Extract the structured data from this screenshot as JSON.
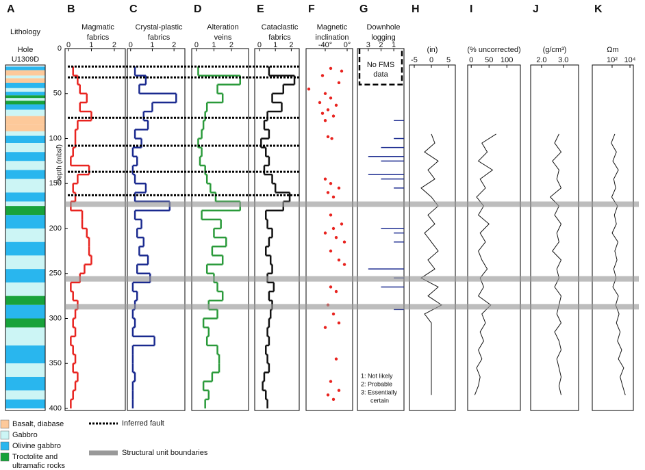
{
  "chart_data": [
    {
      "type": "lithology",
      "label": "A",
      "title": [
        "Lithology"
      ],
      "hole": [
        "Hole",
        "U1309D"
      ],
      "ylim": [
        0,
        400
      ],
      "depths": [
        20,
        24,
        30,
        33,
        38,
        44,
        48,
        52,
        55,
        58,
        62,
        68,
        75,
        85,
        92,
        97,
        105,
        115,
        125,
        135,
        145,
        160,
        170,
        175,
        185,
        200,
        215,
        230,
        245,
        260,
        275,
        285,
        300,
        310,
        330,
        350,
        365,
        380,
        390,
        400
      ],
      "colors": [
        "#29b6ee",
        "#fdc99a",
        "#ccf5f5",
        "#fdc99a",
        "#29b6ee",
        "#ccf5f5",
        "#29b6ee",
        "#18a23a",
        "#ccf5f5",
        "#18a23a",
        "#29b6ee",
        "#ccf5f5",
        "#fdc99a",
        "#fdc99a",
        "#ccf5f5",
        "#29b6ee",
        "#ccf5f5",
        "#29b6ee",
        "#ccf5f5",
        "#29b6ee",
        "#ccf5f5",
        "#29b6ee",
        "#ccf5f5",
        "#18a23a",
        "#29b6ee",
        "#ccf5f5",
        "#29b6ee",
        "#ccf5f5",
        "#29b6ee",
        "#ccf5f5",
        "#18a23a",
        "#29b6ee",
        "#18a23a",
        "#ccf5f5",
        "#29b6ee",
        "#ccf5f5",
        "#29b6ee",
        "#ccf5f5",
        "#29b6ee"
      ],
      "legend": [
        {
          "name": [
            "Basalt, diabase"
          ],
          "color": "#fdc99a"
        },
        {
          "name": [
            "Gabbro"
          ],
          "color": "#ccf5f5"
        },
        {
          "name": [
            "Olivine gabbro"
          ],
          "color": "#29b6ee"
        },
        {
          "name": [
            "Troctolite and",
            "ultramafic rocks"
          ],
          "color": "#18a23a"
        }
      ]
    },
    {
      "type": "step",
      "label": "B",
      "title": [
        "Magmatic",
        "fabrics"
      ],
      "color": "#e8231f",
      "xlim": [
        -0.15,
        2.48
      ],
      "xticks": [
        0,
        1,
        2
      ],
      "ylim": [
        0,
        400
      ],
      "yticks": [
        0,
        50,
        100,
        150,
        200,
        250,
        300,
        350,
        400
      ],
      "ylabel": "Depth (mbsf)",
      "faults": [
        20,
        32,
        77,
        108,
        137,
        163
      ],
      "boundaries": [
        173,
        256,
        287
      ],
      "fault_label": "Inferred fault",
      "boundary_label": "Structural unit boundaries",
      "depths": [
        20,
        30,
        40,
        50,
        60,
        70,
        80,
        90,
        100,
        110,
        120,
        130,
        140,
        150,
        160,
        170,
        180,
        190,
        200,
        210,
        220,
        230,
        240,
        250,
        260,
        270,
        280,
        290,
        300,
        310,
        320,
        330,
        340,
        350,
        360,
        370,
        380,
        390,
        400
      ],
      "values": [
        0.2,
        0.4,
        0.5,
        0.8,
        0.5,
        1.0,
        0.4,
        0.3,
        0.3,
        0.2,
        0.1,
        0.9,
        0.4,
        0.2,
        0.3,
        0.1,
        0.6,
        0.6,
        0.8,
        0.9,
        0.9,
        1.0,
        0.7,
        0.5,
        0.1,
        0.2,
        0.4,
        0.3,
        0.2,
        0.3,
        0.1,
        0.2,
        0.3,
        0.2,
        0.4,
        0.3,
        0.2,
        0.1
      ]
    },
    {
      "type": "step",
      "label": "C",
      "title": [
        "Crystal-plastic",
        "fabrics"
      ],
      "color": "#1a2a8f",
      "xlim": [
        -0.15,
        2.5
      ],
      "xticks": [
        0,
        1,
        2
      ],
      "ylim": [
        0,
        400
      ],
      "depths": [
        20,
        30,
        40,
        50,
        60,
        70,
        80,
        90,
        100,
        110,
        120,
        130,
        140,
        150,
        160,
        170,
        180,
        190,
        200,
        210,
        220,
        230,
        240,
        250,
        260,
        270,
        280,
        290,
        300,
        310,
        320,
        330,
        340,
        350,
        360,
        370,
        380,
        390,
        400
      ],
      "values": [
        0.2,
        0.7,
        0.4,
        2.1,
        1.0,
        0.6,
        0.8,
        0.2,
        0.5,
        0.1,
        0.3,
        0.1,
        0.2,
        0.7,
        0.2,
        1.8,
        0.2,
        0.5,
        0.3,
        0.6,
        0.4,
        0.8,
        0.3,
        0.9,
        0.1,
        0.3,
        0.2,
        0.1,
        0.2,
        0.1,
        1.1,
        0.1,
        0.1,
        0.1,
        0.2,
        0.1,
        0.1,
        0.1
      ]
    },
    {
      "type": "step",
      "label": "D",
      "title": [
        "Alteration",
        "veins"
      ],
      "color": "#2a9a3a",
      "xlim": [
        -0.27,
        2.98
      ],
      "xticks": [
        0,
        1,
        2
      ],
      "ylim": [
        0,
        400
      ],
      "depths": [
        20,
        30,
        40,
        50,
        60,
        70,
        80,
        90,
        100,
        110,
        120,
        130,
        140,
        150,
        160,
        170,
        180,
        190,
        200,
        210,
        220,
        230,
        240,
        250,
        260,
        270,
        280,
        290,
        300,
        310,
        320,
        330,
        340,
        350,
        360,
        370,
        380,
        390,
        400
      ],
      "values": [
        0.1,
        2.5,
        1.2,
        1.5,
        0.6,
        0.5,
        0.4,
        0.3,
        0.1,
        0.3,
        0.2,
        0.5,
        0.6,
        0.8,
        1.1,
        2.5,
        0.3,
        1.4,
        1.0,
        1.7,
        0.9,
        1.5,
        0.6,
        1.0,
        1.2,
        1.5,
        0.7,
        1.2,
        0.4,
        0.7,
        0.6,
        1.2,
        1.3,
        1.3,
        0.9,
        0.4,
        0.7,
        0.5
      ]
    },
    {
      "type": "step",
      "label": "E",
      "title": [
        "Cataclastic",
        "fabrics"
      ],
      "color": "#111111",
      "xlim": [
        -0.3,
        2.5
      ],
      "xticks": [
        0,
        1,
        2
      ],
      "ylim": [
        0,
        400
      ],
      "depths": [
        20,
        30,
        40,
        50,
        60,
        70,
        80,
        90,
        100,
        110,
        120,
        130,
        140,
        150,
        160,
        170,
        180,
        190,
        200,
        210,
        220,
        230,
        240,
        250,
        260,
        270,
        280,
        290,
        300,
        310,
        320,
        330,
        340,
        350,
        360,
        370,
        380,
        390,
        400
      ],
      "values": [
        0.6,
        2.2,
        1.5,
        0.8,
        1.4,
        0.5,
        0.3,
        0.6,
        0.1,
        0.4,
        0.6,
        0.3,
        0.8,
        1.0,
        1.9,
        1.5,
        0.4,
        0.5,
        0.8,
        0.6,
        0.4,
        0.7,
        0.8,
        0.5,
        0.9,
        0.6,
        0.8,
        0.7,
        0.6,
        0.5,
        0.6,
        0.4,
        0.5,
        0.6,
        0.3,
        0.2,
        0.4,
        0.5
      ]
    },
    {
      "type": "scatter",
      "label": "F",
      "title": [
        "Magnetic",
        "inclination"
      ],
      "color": "#e8231f",
      "xlim": [
        -75,
        10
      ],
      "ylim": [
        0,
        400
      ],
      "xticks": [
        {
          "value": -40,
          "label": "-40°"
        },
        {
          "value": 0,
          "label": "0°"
        }
      ],
      "depths": [
        22,
        25,
        30,
        38,
        45,
        50,
        55,
        60,
        63,
        68,
        72,
        75,
        80,
        98,
        100,
        145,
        150,
        155,
        160,
        165,
        185,
        195,
        200,
        205,
        210,
        215,
        225,
        235,
        240,
        265,
        270,
        285,
        295,
        305,
        310,
        345,
        370,
        380,
        385,
        390
      ],
      "values": [
        -30,
        -10,
        -45,
        -15,
        -70,
        -40,
        -30,
        -50,
        -20,
        -35,
        -45,
        -25,
        -40,
        -35,
        -28,
        -40,
        -30,
        -15,
        -35,
        -25,
        -30,
        -10,
        -25,
        -40,
        -20,
        -5,
        -30,
        -15,
        -5,
        -30,
        -20,
        -35,
        -25,
        -15,
        -40,
        -20,
        -30,
        -15,
        -35,
        -25
      ]
    },
    {
      "type": "confidence",
      "label": "G",
      "title": [
        "Downhole",
        "logging"
      ],
      "color": "#1a2a8f",
      "xlim": [
        3.85,
        0.2
      ],
      "xticks": [
        3,
        2,
        1
      ],
      "ylim": [
        0,
        400
      ],
      "no_data_range": [
        0,
        40
      ],
      "no_data": [
        "No FMS",
        "data"
      ],
      "notes": [
        "1: Not likely",
        "2: Probable",
        "3: Essentially",
        "certain"
      ],
      "depths": [
        80,
        100,
        110,
        120,
        125,
        140,
        145,
        155,
        200,
        205,
        215,
        245,
        255,
        265,
        290
      ],
      "values": [
        1,
        1,
        2,
        3,
        2,
        3,
        2,
        1,
        2,
        1,
        1,
        3,
        1,
        2,
        1
      ]
    },
    {
      "type": "log",
      "label": "H",
      "unit": "(in)",
      "color": "#111111",
      "xlim": [
        -6.4,
        7
      ],
      "xticks": [
        -5,
        0,
        5
      ],
      "ylim": [
        0,
        400
      ],
      "depths": [
        95,
        105,
        115,
        125,
        135,
        145,
        155,
        165,
        175,
        185,
        195,
        205,
        215,
        225,
        235,
        245,
        255,
        265,
        275,
        285,
        295,
        305,
        315,
        325,
        335,
        345,
        355,
        365,
        375,
        385
      ],
      "values": [
        0,
        1,
        -2,
        2,
        -1,
        1,
        -3,
        0,
        2,
        -1,
        1,
        -2,
        0,
        2,
        -1,
        1,
        -3,
        2,
        -1,
        3,
        -2,
        0,
        0,
        0,
        0,
        0,
        0,
        0,
        0,
        0
      ]
    },
    {
      "type": "log",
      "label": "I",
      "unit": "(% uncorrected)",
      "color": "#111111",
      "xlim": [
        -10,
        138
      ],
      "xticks": [
        0,
        50,
        100
      ],
      "ylim": [
        0,
        400
      ],
      "depths": [
        95,
        105,
        115,
        125,
        135,
        145,
        155,
        165,
        175,
        185,
        195,
        205,
        215,
        225,
        235,
        245,
        255,
        265,
        275,
        285,
        295,
        305,
        315,
        325,
        335,
        345,
        355,
        365,
        375,
        385
      ],
      "values": [
        70,
        30,
        45,
        20,
        60,
        25,
        40,
        15,
        35,
        20,
        50,
        25,
        40,
        20,
        30,
        45,
        25,
        35,
        20,
        55,
        30,
        40,
        25,
        35,
        20,
        30,
        15,
        25,
        20,
        10
      ]
    },
    {
      "type": "log",
      "label": "J",
      "unit": "(g/cm³)",
      "color": "#111111",
      "xlim": [
        1.5,
        3.7
      ],
      "xticks": [
        {
          "value": 2,
          "label": "2.0"
        },
        {
          "value": 3,
          "label": "3.0"
        }
      ],
      "ylim": [
        0,
        400
      ],
      "depths": [
        95,
        105,
        115,
        125,
        135,
        145,
        155,
        165,
        175,
        185,
        195,
        205,
        215,
        225,
        235,
        245,
        255,
        265,
        275,
        285,
        295,
        305,
        315,
        325,
        335,
        345,
        355,
        365,
        375,
        385
      ],
      "values": [
        2.8,
        2.6,
        2.9,
        2.5,
        2.8,
        2.7,
        2.9,
        2.4,
        2.8,
        2.6,
        2.9,
        2.7,
        2.8,
        2.5,
        2.9,
        2.7,
        2.8,
        2.6,
        2.9,
        2.8,
        2.7,
        2.9,
        2.6,
        2.8,
        2.9,
        2.7,
        2.8,
        2.9,
        2.8,
        2.9
      ]
    },
    {
      "type": "log",
      "label": "K",
      "unit": "Ωm",
      "log": true,
      "color": "#111111",
      "xlim": [
        0.6,
        24000
      ],
      "xticks": [
        {
          "value": 100,
          "label": "10²"
        },
        {
          "value": 10000,
          "label": "10⁴"
        }
      ],
      "ylim": [
        0,
        400
      ],
      "depths": [
        95,
        105,
        115,
        125,
        135,
        145,
        155,
        165,
        175,
        185,
        195,
        205,
        215,
        225,
        235,
        245,
        255,
        265,
        275,
        285,
        295,
        305,
        315,
        325,
        335,
        345,
        355,
        365,
        375,
        385
      ],
      "values": [
        200,
        80,
        300,
        120,
        500,
        150,
        250,
        90,
        400,
        180,
        300,
        100,
        450,
        200,
        350,
        150,
        280,
        120,
        500,
        250,
        600,
        300,
        800,
        400,
        1200,
        500,
        2000,
        800,
        1500,
        3000
      ]
    }
  ]
}
